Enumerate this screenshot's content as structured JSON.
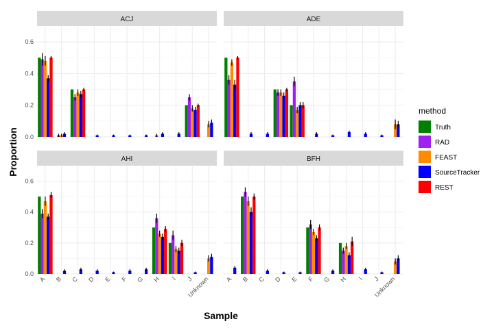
{
  "chart_data": {
    "type": "bar",
    "xlabel": "Sample",
    "ylabel": "Proportion",
    "ylim": [
      0,
      0.7
    ],
    "yticks": [
      0.0,
      0.2,
      0.4,
      0.6
    ],
    "ytick_labels": [
      "0.0",
      "0.2",
      "0.4",
      "0.6"
    ],
    "grid": true,
    "legend": {
      "title": "method",
      "placement": "right",
      "entries": [
        {
          "name": "Truth",
          "color": "#008000"
        },
        {
          "name": "RAD",
          "color": "#a020f0"
        },
        {
          "name": "FEAST",
          "color": "#ff8c00"
        },
        {
          "name": "SourceTracker",
          "color": "#0000ff"
        },
        {
          "name": "REST",
          "color": "#ff0000"
        }
      ]
    },
    "panels": [
      {
        "title": "ACJ",
        "categories": [
          "A",
          "B",
          "C",
          "D",
          "E",
          "F",
          "G",
          "H",
          "I",
          "J",
          "Unknown"
        ],
        "series": [
          {
            "name": "Truth",
            "values": [
              0.5,
              0,
              0.3,
              0,
              0,
              0,
              0,
              0,
              0,
              0.2,
              0
            ]
          },
          {
            "name": "RAD",
            "values": [
              0.49,
              0.01,
              0.25,
              0,
              0,
              0,
              0,
              0.01,
              0,
              0.25,
              0
            ]
          },
          {
            "name": "FEAST",
            "values": [
              0.48,
              0.01,
              0.28,
              0,
              0,
              0,
              0,
              0,
              0,
              0.18,
              0.08
            ]
          },
          {
            "name": "SourceTracker",
            "values": [
              0.37,
              0.02,
              0.27,
              0.01,
              0.01,
              0.01,
              0.01,
              0.02,
              0.02,
              0.17,
              0.09
            ]
          },
          {
            "name": "REST",
            "values": [
              0.5,
              0,
              0.3,
              0,
              0,
              0,
              0,
              0,
              0,
              0.2,
              0
            ]
          }
        ],
        "errors": [
          [
            0,
            0,
            0,
            0,
            0,
            0,
            0,
            0,
            0,
            0,
            0
          ],
          [
            0.04,
            0.01,
            0.02,
            0,
            0,
            0,
            0,
            0.01,
            0,
            0.02,
            0
          ],
          [
            0.03,
            0.01,
            0.02,
            0,
            0,
            0,
            0,
            0,
            0,
            0.02,
            0.02
          ],
          [
            0.02,
            0.01,
            0.02,
            0.005,
            0.005,
            0.005,
            0.005,
            0.01,
            0.01,
            0.02,
            0.02
          ],
          [
            0.01,
            0,
            0.01,
            0,
            0,
            0,
            0,
            0,
            0,
            0.01,
            0
          ]
        ]
      },
      {
        "title": "ADE",
        "categories": [
          "A",
          "B",
          "C",
          "D",
          "E",
          "F",
          "G",
          "H",
          "I",
          "J",
          "Unknown"
        ],
        "series": [
          {
            "name": "Truth",
            "values": [
              0.5,
              0,
              0,
              0.3,
              0.2,
              0,
              0,
              0,
              0,
              0,
              0
            ]
          },
          {
            "name": "RAD",
            "values": [
              0.36,
              0,
              0,
              0.28,
              0.35,
              0,
              0,
              0,
              0,
              0,
              0
            ]
          },
          {
            "name": "FEAST",
            "values": [
              0.47,
              0,
              0,
              0.28,
              0.17,
              0,
              0,
              0,
              0,
              0,
              0.08
            ]
          },
          {
            "name": "SourceTracker",
            "values": [
              0.33,
              0.02,
              0.02,
              0.26,
              0.2,
              0.02,
              0.01,
              0.03,
              0.02,
              0.01,
              0.08
            ]
          },
          {
            "name": "REST",
            "values": [
              0.5,
              0,
              0,
              0.3,
              0.2,
              0,
              0,
              0,
              0,
              0,
              0
            ]
          }
        ],
        "errors": [
          [
            0,
            0,
            0,
            0,
            0,
            0,
            0,
            0,
            0,
            0,
            0
          ],
          [
            0.03,
            0,
            0,
            0.02,
            0.03,
            0,
            0,
            0,
            0,
            0,
            0
          ],
          [
            0.02,
            0,
            0,
            0.02,
            0.02,
            0,
            0,
            0,
            0,
            0,
            0.03
          ],
          [
            0.03,
            0.01,
            0.01,
            0.02,
            0.02,
            0.01,
            0.005,
            0.01,
            0.01,
            0.005,
            0.02
          ],
          [
            0.01,
            0,
            0,
            0.01,
            0.02,
            0,
            0,
            0,
            0,
            0,
            0
          ]
        ]
      },
      {
        "title": "AHI",
        "categories": [
          "A",
          "B",
          "C",
          "D",
          "E",
          "F",
          "G",
          "H",
          "I",
          "J",
          "Unknown"
        ],
        "series": [
          {
            "name": "Truth",
            "values": [
              0.5,
              0,
              0,
              0,
              0,
              0,
              0,
              0.3,
              0.2,
              0,
              0
            ]
          },
          {
            "name": "RAD",
            "values": [
              0.39,
              0,
              0,
              0,
              0,
              0,
              0,
              0.36,
              0.25,
              0,
              0
            ]
          },
          {
            "name": "FEAST",
            "values": [
              0.47,
              0,
              0,
              0,
              0,
              0,
              0,
              0.26,
              0.16,
              0,
              0.1
            ]
          },
          {
            "name": "SourceTracker",
            "values": [
              0.37,
              0.02,
              0.03,
              0.02,
              0.01,
              0.02,
              0.03,
              0.24,
              0.15,
              0.01,
              0.11
            ]
          },
          {
            "name": "REST",
            "values": [
              0.51,
              0,
              0,
              0,
              0,
              0,
              0,
              0.29,
              0.2,
              0,
              0
            ]
          }
        ],
        "errors": [
          [
            0,
            0,
            0,
            0,
            0,
            0,
            0,
            0,
            0,
            0,
            0
          ],
          [
            0.03,
            0,
            0,
            0,
            0,
            0,
            0,
            0.03,
            0.03,
            0,
            0
          ],
          [
            0.03,
            0,
            0,
            0,
            0,
            0,
            0,
            0.02,
            0.02,
            0,
            0.02
          ],
          [
            0.02,
            0.01,
            0.01,
            0.01,
            0.005,
            0.01,
            0.01,
            0.02,
            0.02,
            0.005,
            0.02
          ],
          [
            0.02,
            0,
            0,
            0,
            0,
            0,
            0,
            0.02,
            0.02,
            0,
            0
          ]
        ]
      },
      {
        "title": "BFH",
        "categories": [
          "A",
          "B",
          "C",
          "D",
          "E",
          "F",
          "G",
          "H",
          "I",
          "J",
          "Unknown"
        ],
        "series": [
          {
            "name": "Truth",
            "values": [
              0,
              0.5,
              0,
              0,
              0,
              0.3,
              0,
              0.2,
              0,
              0,
              0
            ]
          },
          {
            "name": "RAD",
            "values": [
              0,
              0.53,
              0,
              0,
              0,
              0.32,
              0,
              0.15,
              0,
              0,
              0
            ]
          },
          {
            "name": "FEAST",
            "values": [
              0,
              0.47,
              0,
              0,
              0,
              0.27,
              0,
              0.18,
              0,
              0,
              0.08
            ]
          },
          {
            "name": "SourceTracker",
            "values": [
              0.04,
              0.4,
              0.02,
              0.01,
              0.01,
              0.23,
              0.02,
              0.12,
              0.03,
              0.01,
              0.1
            ]
          },
          {
            "name": "REST",
            "values": [
              0,
              0.5,
              0,
              0,
              0,
              0.3,
              0,
              0.21,
              0,
              0,
              0
            ]
          }
        ],
        "errors": [
          [
            0,
            0,
            0,
            0,
            0,
            0,
            0,
            0,
            0,
            0,
            0
          ],
          [
            0,
            0.03,
            0,
            0,
            0,
            0.03,
            0,
            0.02,
            0,
            0,
            0
          ],
          [
            0,
            0.03,
            0,
            0,
            0,
            0.02,
            0,
            0.02,
            0,
            0,
            0.02
          ],
          [
            0.01,
            0.03,
            0.01,
            0.005,
            0.005,
            0.02,
            0.01,
            0.02,
            0.01,
            0.005,
            0.02
          ],
          [
            0,
            0.02,
            0,
            0,
            0,
            0.02,
            0,
            0.03,
            0,
            0,
            0
          ]
        ]
      }
    ]
  }
}
